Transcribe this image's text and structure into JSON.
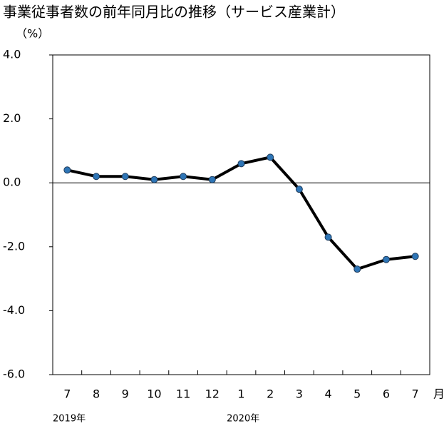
{
  "chart_data": {
    "type": "line",
    "title": "事業従事者数の前年同月比の推移（サービス産業計）",
    "y_unit": "（%）",
    "x_unit": "月",
    "year_labels": [
      "2019年",
      "2020年"
    ],
    "categories": [
      "7",
      "8",
      "9",
      "10",
      "11",
      "12",
      "1",
      "2",
      "3",
      "4",
      "5",
      "6",
      "7"
    ],
    "series": [
      {
        "name": "前年同月比",
        "color": "#000000",
        "marker_color": "#2e75b6",
        "values": [
          0.4,
          0.2,
          0.2,
          0.1,
          0.2,
          0.1,
          0.6,
          0.8,
          -0.2,
          -1.7,
          -2.7,
          -2.4,
          -2.3
        ]
      }
    ],
    "ylim": [
      -6,
      4
    ],
    "yticks": [
      {
        "value": 4,
        "label": "4.0"
      },
      {
        "value": 2,
        "label": "2.0"
      },
      {
        "value": 0,
        "label": "0.0"
      },
      {
        "value": -2,
        "label": "-2.0"
      },
      {
        "value": -4,
        "label": "-4.0"
      },
      {
        "value": -6,
        "label": "-6.0"
      }
    ]
  }
}
